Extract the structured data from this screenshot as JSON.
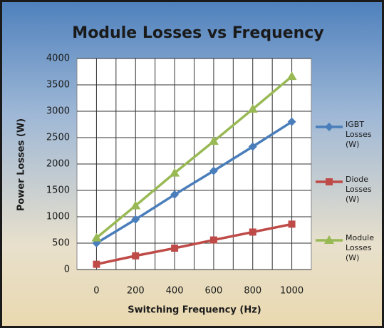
{
  "chart_data": {
    "type": "line",
    "title": "Module Losses vs Frequency",
    "x_label": "Switching Frequency (Hz)",
    "y_label": "Power Losses (W)",
    "categories": [
      "0",
      "200",
      "400",
      "600",
      "800",
      "1000"
    ],
    "series": [
      {
        "name": "IGBT Losses (W)",
        "color": "#4a7ebb",
        "marker": "diamond",
        "values": [
          500,
          950,
          1420,
          1870,
          2330,
          2800
        ]
      },
      {
        "name": "Diode Losses (W)",
        "color": "#be4b48",
        "marker": "square",
        "values": [
          100,
          260,
          405,
          560,
          710,
          860
        ]
      },
      {
        "name": "Module Losses (W)",
        "color": "#98b954",
        "marker": "triangle",
        "values": [
          600,
          1210,
          1830,
          2430,
          3040,
          3660
        ]
      }
    ],
    "ylim": [
      0,
      4000
    ],
    "yticks": [
      0,
      500,
      1000,
      1500,
      2000,
      2500,
      3000,
      3500,
      4000
    ],
    "grid": true,
    "legend": "right"
  }
}
